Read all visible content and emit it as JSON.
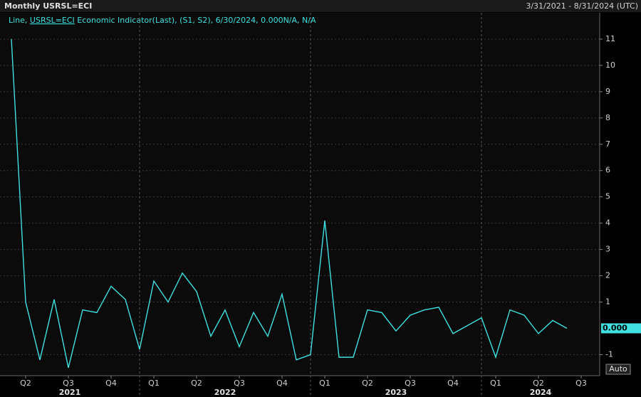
{
  "chart_data": {
    "type": "line",
    "title": "Monthly USRSL=ECI",
    "date_range": "3/31/2021 - 8/31/2024 (UTC)",
    "legend_text": [
      "Line, ",
      "USRSL=ECI",
      " Economic Indicator(Last), (S1, S2), 6/30/2024, 0.000N/A, N/A"
    ],
    "auto_button": "Auto",
    "color": "#40e0e0",
    "series": [
      {
        "name": "USRSL=ECI",
        "color": "#40e0e0",
        "values": [
          11,
          1.0,
          -1.2,
          1.1,
          -1.5,
          0.7,
          0.6,
          1.6,
          1.1,
          -0.8,
          1.8,
          1.0,
          2.1,
          1.4,
          -0.3,
          0.7,
          -0.7,
          0.6,
          -0.3,
          1.3,
          -1.2,
          -1.0,
          4.1,
          -1.1,
          -1.1,
          0.7,
          0.6,
          -0.1,
          0.5,
          0.7,
          0.8,
          -0.2,
          0.1,
          0.4,
          -1.1,
          0.7,
          0.5,
          -0.2,
          0.3,
          0.0
        ]
      }
    ],
    "last_value_label": "0.000",
    "ylim": [
      -1.8,
      12.0
    ],
    "yticks": [
      -1,
      1,
      2,
      3,
      4,
      5,
      6,
      7,
      8,
      9,
      10,
      11
    ],
    "xlim": [
      -0.8,
      41.3
    ],
    "xticks": [
      {
        "value": 1,
        "label": "Q2"
      },
      {
        "value": 4,
        "label": "Q3"
      },
      {
        "value": 7,
        "label": "Q4"
      },
      {
        "value": 10,
        "label": "Q1"
      },
      {
        "value": 13,
        "label": "Q2"
      },
      {
        "value": 16,
        "label": "Q3"
      },
      {
        "value": 19,
        "label": "Q4"
      },
      {
        "value": 22,
        "label": "Q1"
      },
      {
        "value": 25,
        "label": "Q2"
      },
      {
        "value": 28,
        "label": "Q3"
      },
      {
        "value": 31,
        "label": "Q4"
      },
      {
        "value": 34,
        "label": "Q1"
      },
      {
        "value": 37,
        "label": "Q2"
      },
      {
        "value": 40,
        "label": "Q3"
      }
    ],
    "years": [
      {
        "value": -0.8,
        "label": "2021"
      },
      {
        "value": 9,
        "label": "2022"
      },
      {
        "value": 21,
        "label": "2023"
      },
      {
        "value": 33,
        "label": "2024"
      }
    ],
    "grid": true
  }
}
